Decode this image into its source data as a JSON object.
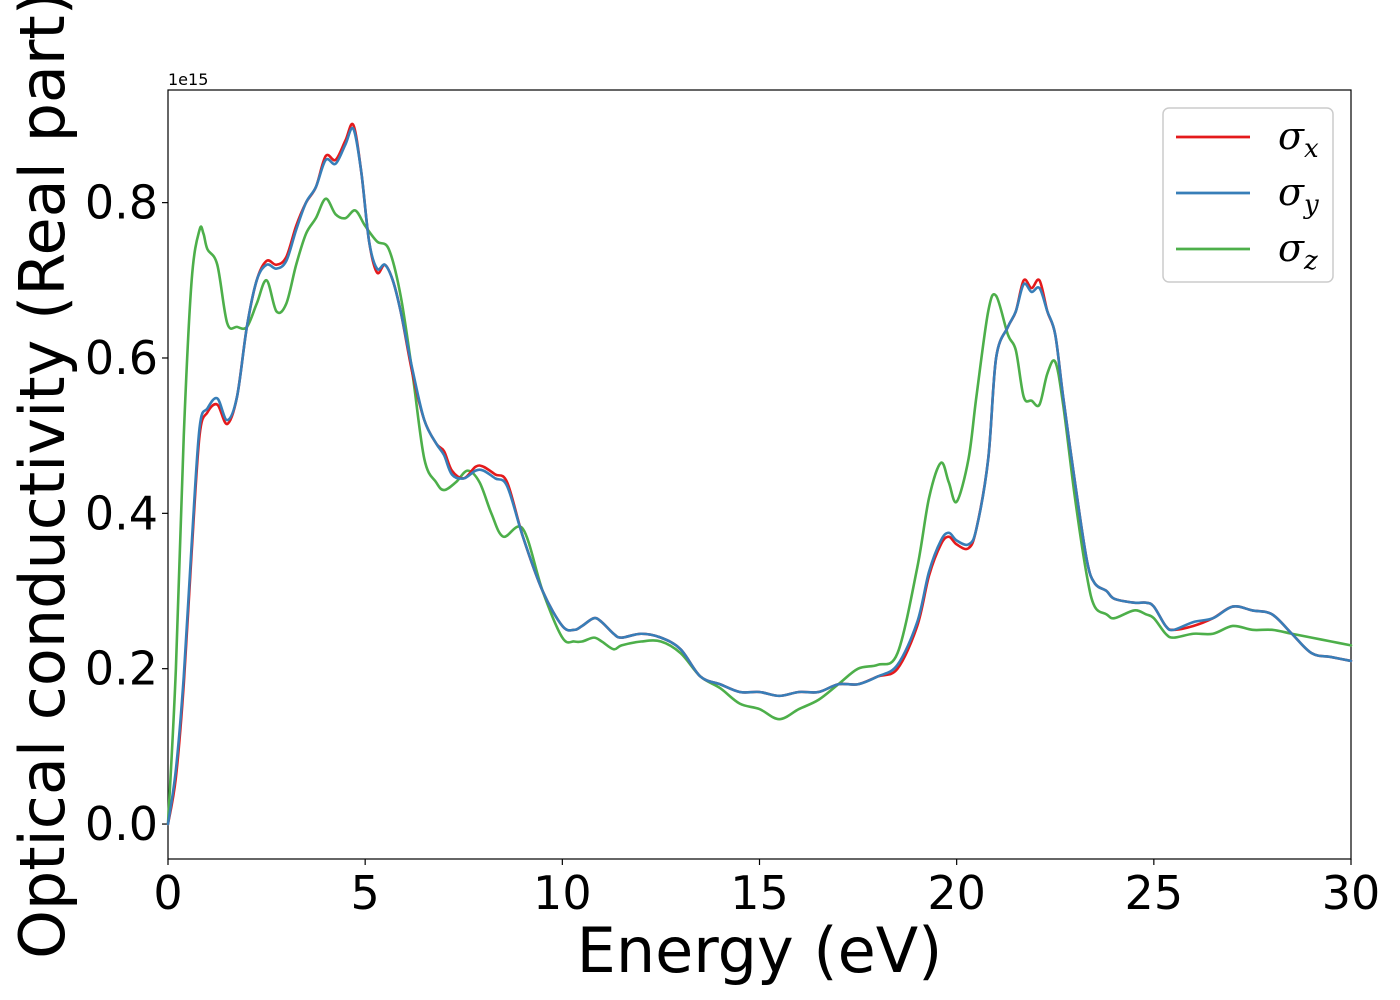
{
  "chart_data": {
    "type": "line",
    "xlabel": "Energy (eV)",
    "ylabel": "Optical conductivity (Real part)",
    "y_offset_label": "1e15",
    "xlim": [
      0,
      30
    ],
    "ylim": [
      -0.045,
      0.945
    ],
    "x_ticks": [
      0,
      5,
      10,
      15,
      20,
      25,
      30
    ],
    "x_tick_labels": [
      "0",
      "5",
      "10",
      "15",
      "20",
      "25",
      "30"
    ],
    "y_ticks": [
      0.0,
      0.2,
      0.4,
      0.6,
      0.8
    ],
    "y_tick_labels": [
      "0.0",
      "0.2",
      "0.4",
      "0.6",
      "0.8"
    ],
    "grid": false,
    "legend_position": "top-right",
    "series": [
      {
        "name": "σx",
        "legend_symbol": "σ",
        "legend_subscript": "x",
        "color": "#e41a1c",
        "x": [
          0.0,
          0.2,
          0.4,
          0.6,
          0.8,
          1.0,
          1.25,
          1.5,
          1.75,
          2.0,
          2.25,
          2.5,
          2.75,
          3.0,
          3.25,
          3.5,
          3.75,
          4.0,
          4.25,
          4.5,
          4.7,
          4.9,
          5.1,
          5.3,
          5.5,
          5.7,
          5.9,
          6.2,
          6.5,
          6.8,
          7.0,
          7.2,
          7.5,
          7.8,
          8.0,
          8.3,
          8.6,
          9.0,
          9.5,
          10.0,
          10.3,
          10.5,
          10.8,
          11.0,
          11.3,
          11.5,
          12.0,
          12.5,
          13.0,
          13.5,
          14.0,
          14.5,
          15.0,
          15.5,
          16.0,
          16.5,
          17.0,
          17.5,
          18.0,
          18.5,
          19.0,
          19.3,
          19.6,
          19.8,
          20.0,
          20.3,
          20.5,
          20.8,
          21.0,
          21.3,
          21.5,
          21.7,
          21.9,
          22.1,
          22.3,
          22.5,
          22.7,
          23.0,
          23.3,
          23.5,
          23.8,
          24.0,
          24.5,
          24.8,
          25.0,
          25.3,
          25.5,
          26.0,
          26.5,
          27.0,
          27.5,
          28.0,
          28.5,
          29.0,
          29.5,
          30.0
        ],
        "y": [
          0.0,
          0.06,
          0.18,
          0.35,
          0.5,
          0.53,
          0.54,
          0.515,
          0.55,
          0.64,
          0.7,
          0.725,
          0.72,
          0.73,
          0.77,
          0.8,
          0.82,
          0.86,
          0.855,
          0.88,
          0.9,
          0.84,
          0.75,
          0.71,
          0.72,
          0.7,
          0.66,
          0.58,
          0.52,
          0.49,
          0.48,
          0.455,
          0.445,
          0.46,
          0.46,
          0.45,
          0.44,
          0.37,
          0.3,
          0.255,
          0.25,
          0.255,
          0.265,
          0.26,
          0.245,
          0.24,
          0.245,
          0.24,
          0.225,
          0.19,
          0.18,
          0.17,
          0.17,
          0.165,
          0.17,
          0.17,
          0.18,
          0.18,
          0.19,
          0.2,
          0.255,
          0.32,
          0.36,
          0.37,
          0.36,
          0.355,
          0.38,
          0.47,
          0.6,
          0.64,
          0.66,
          0.7,
          0.69,
          0.7,
          0.66,
          0.63,
          0.55,
          0.44,
          0.34,
          0.31,
          0.3,
          0.29,
          0.285,
          0.285,
          0.28,
          0.255,
          0.25,
          0.255,
          0.265,
          0.28,
          0.275,
          0.27,
          0.245,
          0.22,
          0.215,
          0.21
        ]
      },
      {
        "name": "σy",
        "legend_symbol": "σ",
        "legend_subscript": "y",
        "color": "#377eb8",
        "x": [
          0.0,
          0.2,
          0.4,
          0.6,
          0.8,
          1.0,
          1.25,
          1.5,
          1.75,
          2.0,
          2.25,
          2.5,
          2.75,
          3.0,
          3.25,
          3.5,
          3.75,
          4.0,
          4.25,
          4.5,
          4.7,
          4.9,
          5.1,
          5.3,
          5.5,
          5.7,
          5.9,
          6.2,
          6.5,
          6.8,
          7.0,
          7.2,
          7.5,
          7.8,
          8.0,
          8.3,
          8.6,
          9.0,
          9.5,
          10.0,
          10.3,
          10.5,
          10.8,
          11.0,
          11.3,
          11.5,
          12.0,
          12.5,
          13.0,
          13.5,
          14.0,
          14.5,
          15.0,
          15.5,
          16.0,
          16.5,
          17.0,
          17.5,
          18.0,
          18.5,
          19.0,
          19.3,
          19.6,
          19.8,
          20.0,
          20.3,
          20.5,
          20.8,
          21.0,
          21.3,
          21.5,
          21.7,
          21.9,
          22.1,
          22.3,
          22.5,
          22.7,
          23.0,
          23.3,
          23.5,
          23.8,
          24.0,
          24.5,
          24.8,
          25.0,
          25.3,
          25.5,
          26.0,
          26.5,
          27.0,
          27.5,
          28.0,
          28.5,
          29.0,
          29.5,
          30.0
        ],
        "y": [
          0.0,
          0.07,
          0.19,
          0.36,
          0.51,
          0.535,
          0.548,
          0.52,
          0.55,
          0.64,
          0.7,
          0.72,
          0.715,
          0.725,
          0.765,
          0.8,
          0.82,
          0.855,
          0.85,
          0.875,
          0.895,
          0.84,
          0.75,
          0.715,
          0.72,
          0.7,
          0.66,
          0.585,
          0.52,
          0.49,
          0.475,
          0.45,
          0.445,
          0.455,
          0.455,
          0.445,
          0.435,
          0.37,
          0.3,
          0.255,
          0.25,
          0.255,
          0.265,
          0.26,
          0.245,
          0.24,
          0.245,
          0.24,
          0.225,
          0.19,
          0.18,
          0.17,
          0.17,
          0.165,
          0.17,
          0.17,
          0.18,
          0.18,
          0.19,
          0.205,
          0.26,
          0.325,
          0.365,
          0.375,
          0.365,
          0.36,
          0.38,
          0.47,
          0.6,
          0.64,
          0.66,
          0.695,
          0.685,
          0.69,
          0.66,
          0.63,
          0.55,
          0.44,
          0.34,
          0.31,
          0.3,
          0.29,
          0.285,
          0.285,
          0.28,
          0.255,
          0.25,
          0.26,
          0.265,
          0.28,
          0.275,
          0.27,
          0.245,
          0.22,
          0.215,
          0.21
        ]
      },
      {
        "name": "σz",
        "legend_symbol": "σ",
        "legend_subscript": "z",
        "color": "#4daf4a",
        "x": [
          0.0,
          0.2,
          0.4,
          0.6,
          0.8,
          0.9,
          1.0,
          1.25,
          1.5,
          1.75,
          2.0,
          2.25,
          2.5,
          2.75,
          3.0,
          3.25,
          3.5,
          3.75,
          4.0,
          4.25,
          4.5,
          4.75,
          5.0,
          5.3,
          5.6,
          5.9,
          6.2,
          6.5,
          6.8,
          7.0,
          7.3,
          7.6,
          7.9,
          8.2,
          8.5,
          9.0,
          9.5,
          10.0,
          10.3,
          10.5,
          10.8,
          11.0,
          11.3,
          11.5,
          12.0,
          12.5,
          13.0,
          13.5,
          14.0,
          14.5,
          15.0,
          15.5,
          16.0,
          16.5,
          17.0,
          17.5,
          18.0,
          18.5,
          19.0,
          19.3,
          19.6,
          19.8,
          20.0,
          20.3,
          20.5,
          20.8,
          21.0,
          21.3,
          21.5,
          21.7,
          21.9,
          22.1,
          22.3,
          22.5,
          22.7,
          23.0,
          23.3,
          23.5,
          23.8,
          24.0,
          24.5,
          24.8,
          25.0,
          25.3,
          25.5,
          26.0,
          26.5,
          27.0,
          27.5,
          28.0,
          28.5,
          29.0,
          29.5,
          30.0
        ],
        "y": [
          0.0,
          0.2,
          0.5,
          0.7,
          0.765,
          0.76,
          0.74,
          0.72,
          0.645,
          0.64,
          0.64,
          0.67,
          0.7,
          0.66,
          0.67,
          0.72,
          0.76,
          0.78,
          0.805,
          0.785,
          0.78,
          0.79,
          0.77,
          0.75,
          0.74,
          0.68,
          0.58,
          0.47,
          0.44,
          0.43,
          0.44,
          0.455,
          0.44,
          0.4,
          0.37,
          0.38,
          0.3,
          0.24,
          0.235,
          0.235,
          0.24,
          0.235,
          0.225,
          0.23,
          0.235,
          0.235,
          0.22,
          0.19,
          0.175,
          0.155,
          0.148,
          0.135,
          0.148,
          0.16,
          0.18,
          0.2,
          0.205,
          0.22,
          0.33,
          0.42,
          0.465,
          0.44,
          0.415,
          0.47,
          0.55,
          0.66,
          0.68,
          0.63,
          0.61,
          0.55,
          0.545,
          0.54,
          0.58,
          0.595,
          0.54,
          0.42,
          0.32,
          0.28,
          0.27,
          0.265,
          0.275,
          0.27,
          0.265,
          0.245,
          0.24,
          0.245,
          0.245,
          0.255,
          0.25,
          0.25,
          0.245,
          0.24,
          0.235,
          0.23
        ]
      }
    ]
  }
}
